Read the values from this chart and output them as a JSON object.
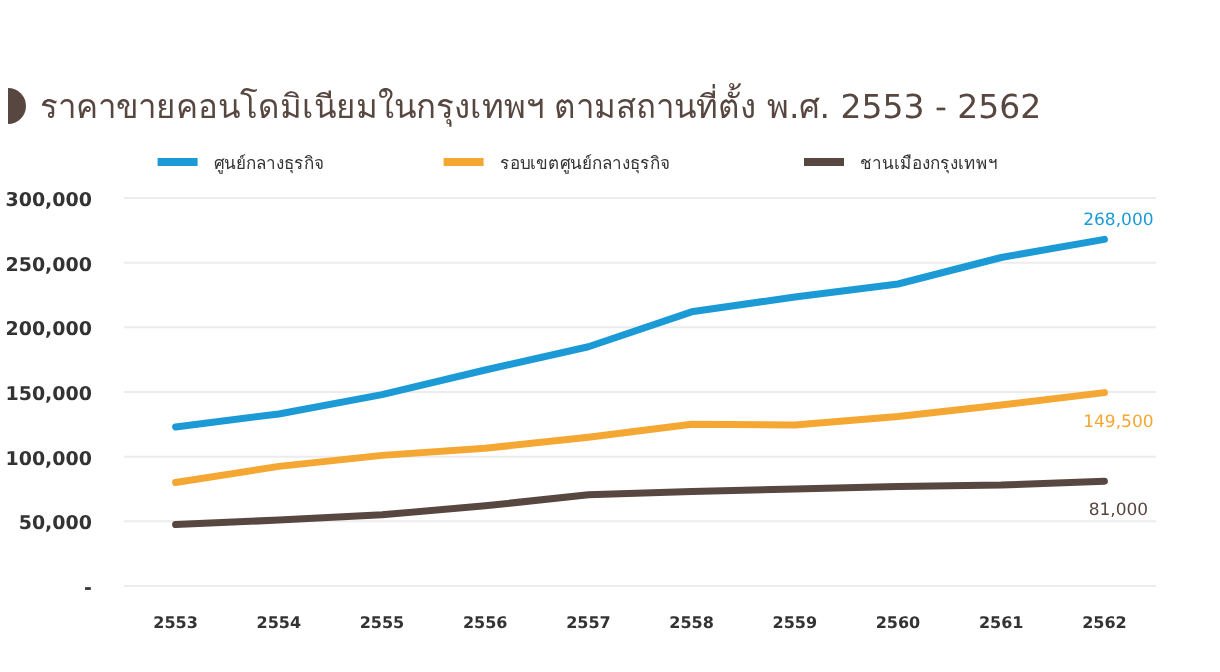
{
  "chart_data": {
    "type": "line",
    "title": "ราคาขายคอนโดมิเนียมในกรุงเทพฯ ตามสถานที่ตั้ง พ.ศ. 2553 - 2562",
    "categories": [
      "2553",
      "2554",
      "2555",
      "2556",
      "2557",
      "2558",
      "2559",
      "2560",
      "2561",
      "2562"
    ],
    "series": [
      {
        "name": "ศูนย์กลางธุรกิจ",
        "color": "#1b9ad6",
        "values": [
          123000,
          133000,
          148000,
          167000,
          185000,
          212000,
          223500,
          233500,
          254000,
          268000
        ],
        "value_labels": [
          null,
          null,
          null,
          null,
          null,
          null,
          null,
          null,
          null,
          "268,000"
        ]
      },
      {
        "name": "รอบเขตศูนย์กลางธุรกิจ",
        "color": "#f5a733",
        "values": [
          80000,
          92500,
          101000,
          106500,
          115000,
          125000,
          124500,
          131000,
          140000,
          149500
        ],
        "value_labels": [
          null,
          null,
          null,
          null,
          null,
          null,
          null,
          null,
          null,
          "149,500"
        ]
      },
      {
        "name": "ชานเมืองกรุงเทพฯ",
        "color": "#574740",
        "values": [
          47500,
          51000,
          55000,
          62000,
          70500,
          73000,
          75000,
          77000,
          78000,
          81000
        ],
        "value_labels": [
          null,
          null,
          null,
          null,
          null,
          null,
          null,
          null,
          null,
          "81,000"
        ]
      }
    ],
    "ylim": [
      0,
      300000
    ],
    "yticks": [
      {
        "value": 0,
        "label": "-"
      },
      {
        "value": 50000,
        "label": "50,000"
      },
      {
        "value": 100000,
        "label": "100,000"
      },
      {
        "value": 150000,
        "label": "150,000"
      },
      {
        "value": 200000,
        "label": "200,000"
      },
      {
        "value": 250000,
        "label": "250,000"
      },
      {
        "value": 300000,
        "label": "300,000"
      }
    ],
    "grid": "y",
    "legend": "top",
    "marker": "none",
    "line_style": "solid"
  }
}
